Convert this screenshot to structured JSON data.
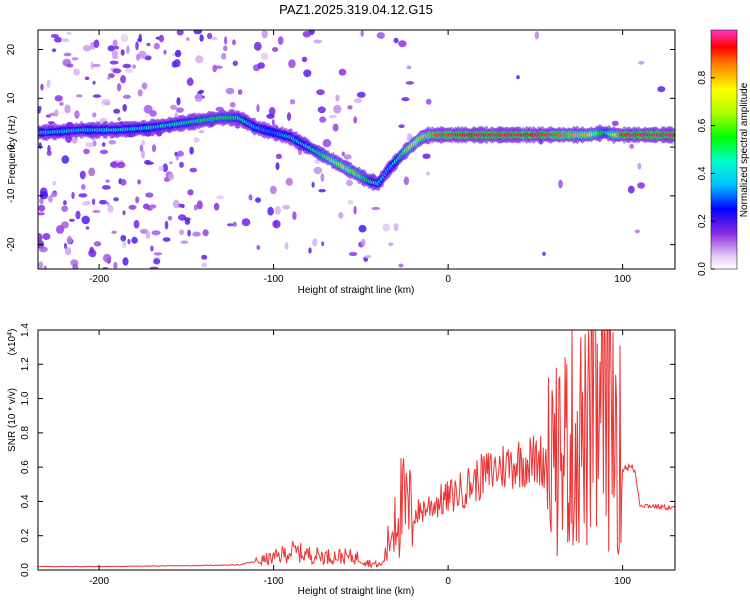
{
  "title": "PAZ1.2025.319.04.12.G15",
  "chart_data": [
    {
      "type": "heatmap",
      "xlabel": "Height of straight line (km)",
      "ylabel": "Frequency (Hz)",
      "xlim": [
        -235,
        130
      ],
      "ylim": [
        -25,
        24
      ],
      "x_ticks": [
        -200,
        -100,
        0,
        100
      ],
      "y_ticks": [
        -20,
        -10,
        0,
        10,
        20
      ],
      "colorbar": {
        "label": "Normalized spectral amplitude",
        "ticks": [
          0.0,
          0.2,
          0.4,
          0.6,
          0.8
        ],
        "range": [
          0,
          1
        ]
      },
      "ridge": {
        "x": [
          -230,
          -210,
          -190,
          -170,
          -150,
          -130,
          -120,
          -110,
          -100,
          -90,
          -80,
          -70,
          -60,
          -50,
          -45,
          -40,
          -35,
          -30,
          -25,
          -20,
          -15,
          -10,
          -5,
          0,
          20,
          40,
          60,
          80,
          90,
          95,
          100,
          130
        ],
        "frequency": [
          3,
          3.5,
          3.5,
          4,
          5,
          6,
          6,
          4,
          3,
          2,
          0,
          -2,
          -4,
          -6,
          -7,
          -7.5,
          -5,
          -3,
          -1,
          0.5,
          2,
          2.5,
          2.5,
          2.5,
          2.5,
          2.5,
          2.5,
          2.5,
          3,
          2.5,
          2.5,
          2.5
        ],
        "amplitude": [
          0.4,
          0.4,
          0.45,
          0.45,
          0.5,
          0.55,
          0.5,
          0.35,
          0.3,
          0.4,
          0.45,
          0.6,
          0.7,
          0.6,
          0.5,
          0.45,
          0.35,
          0.45,
          0.6,
          0.75,
          0.8,
          0.85,
          0.9,
          0.9,
          0.95,
          0.95,
          0.9,
          0.8,
          0.5,
          0.7,
          0.95,
          0.95
        ]
      }
    },
    {
      "type": "line",
      "xlabel": "Height of straight line (km)",
      "ylabel": "SNR (10 * v/v)",
      "scale_note": "(x10",
      "scale_exp": "4",
      "scale_close": ")",
      "xlim": [
        -235,
        130
      ],
      "ylim": [
        0,
        14000
      ],
      "x_ticks": [
        -200,
        -100,
        0,
        100
      ],
      "y_ticks": [
        0,
        2000,
        4000,
        6000,
        8000,
        10000,
        12000,
        14000
      ],
      "y_tick_labels": [
        "0.0",
        "0.2",
        "0.4",
        "0.6",
        "0.8",
        "1.0",
        "1.2",
        "1.4"
      ],
      "series": [
        {
          "color": "#ee3333",
          "x": [
            -235,
            -200,
            -150,
            -120,
            -110,
            -100,
            -90,
            -80,
            -70,
            -60,
            -50,
            -45,
            -40,
            -38,
            -35,
            -32,
            -30,
            -25,
            -20,
            -10,
            0,
            10,
            20,
            30,
            40,
            50,
            60,
            65,
            70,
            75,
            80,
            85,
            90,
            95,
            100,
            105,
            107,
            110,
            120,
            130
          ],
          "y": [
            200,
            200,
            250,
            300,
            500,
            700,
            1100,
            900,
            800,
            800,
            700,
            400,
            300,
            300,
            1200,
            2500,
            4000,
            3500,
            3200,
            3800,
            4200,
            4800,
            5500,
            6000,
            6300,
            6400,
            6500,
            7000,
            7500,
            8000,
            7500,
            8500,
            9000,
            9500,
            6000,
            6000,
            5800,
            3800,
            3700,
            3600
          ]
        }
      ]
    }
  ]
}
